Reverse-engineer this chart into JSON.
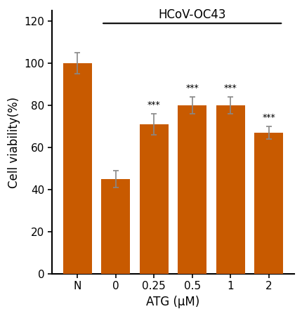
{
  "categories": [
    "N",
    "0",
    "0.25",
    "0.5",
    "1",
    "2"
  ],
  "values": [
    100,
    45,
    71,
    80,
    80,
    67
  ],
  "errors": [
    5,
    4,
    5,
    4,
    4,
    3
  ],
  "bar_color": "#C85A00",
  "ylabel": "Cell viability(%)",
  "xlabel": "ATG (μM)",
  "title": "HCoV-OC43",
  "ylim": [
    0,
    125
  ],
  "yticks": [
    0,
    20,
    40,
    60,
    80,
    100,
    120
  ],
  "significance": [
    false,
    false,
    true,
    true,
    true,
    true
  ],
  "sig_label": "***",
  "background_color": "#ffffff",
  "bar_width": 0.75,
  "error_color": "#888888",
  "error_linewidth": 1.2,
  "capsize": 3
}
